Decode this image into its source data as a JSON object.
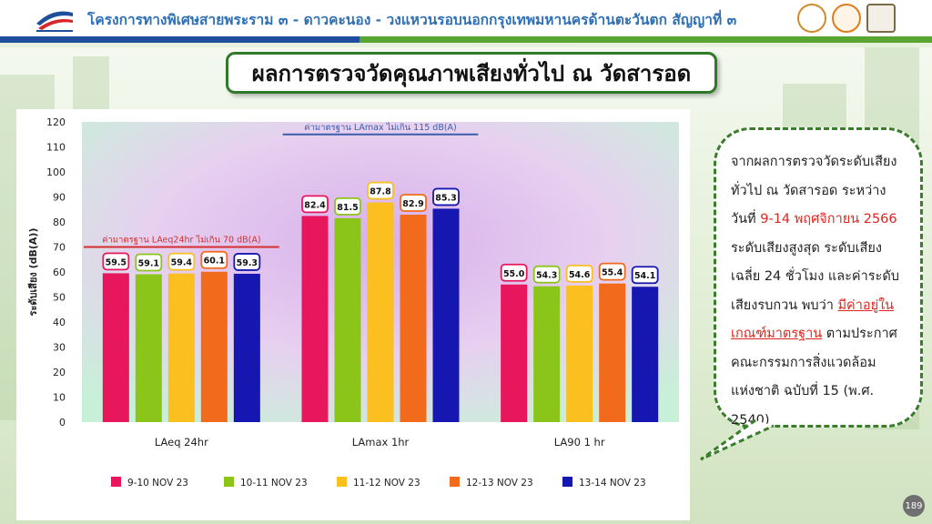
{
  "header": {
    "title": "โครงการทางพิเศษสายพระราม ๓ - ดาวคะนอง - วงแหวนรอบนอกกรุงเทพมหานครด้านตะวันตก สัญญาที่ ๓"
  },
  "subtitle": "ผลการตรวจวัดคุณภาพเสียงทั่วไป ณ วัดสารอด",
  "chart_data": {
    "type": "bar",
    "categories": [
      "LAeq 24hr",
      "LAmax 1hr",
      "LA90 1 hr"
    ],
    "series": [
      {
        "name": "9-10 NOV 23",
        "values": [
          59.5,
          82.4,
          55.0
        ],
        "labels": [
          "59.5",
          "82.4",
          "55.0"
        ],
        "color": "#e8175d"
      },
      {
        "name": "10-11 NOV 23",
        "values": [
          59.1,
          81.5,
          54.3
        ],
        "labels": [
          "59.1",
          "81.5",
          "54.3"
        ],
        "color": "#8cc51a"
      },
      {
        "name": "11-12 NOV 23",
        "values": [
          59.4,
          87.8,
          54.6
        ],
        "labels": [
          "59.4",
          "87.8",
          "54.6"
        ],
        "color": "#fbbf1f"
      },
      {
        "name": "12-13 NOV 23",
        "values": [
          60.1,
          82.9,
          55.4
        ],
        "labels": [
          "60.1",
          "82.9",
          "55.4"
        ],
        "color": "#f26a1b"
      },
      {
        "name": "13-14 NOV 23",
        "values": [
          59.3,
          85.3,
          54.1
        ],
        "labels": [
          "59.3",
          "85.3",
          "54.1"
        ],
        "color": "#1616b0"
      }
    ],
    "ylabel": "ระดับเสียง (dB(A))",
    "ylim": [
      0,
      120
    ],
    "yticks": [
      0,
      10,
      20,
      30,
      40,
      50,
      60,
      70,
      80,
      90,
      100,
      110,
      120
    ],
    "standards": [
      {
        "label": "ค่ามาตรฐาน LAeq24hr ไม่เกิน 70 dB(A)",
        "value": 70,
        "category_index": 0,
        "color": "#d32f2f"
      },
      {
        "label": "ค่ามาตรฐาน LAmax ไม่เกิน 115 dB(A)",
        "value": 115,
        "category_index": 1,
        "color": "#3a5ea8"
      }
    ],
    "legend_position": "bottom",
    "grid": false
  },
  "callout": {
    "line1": "จากผลการตรวจวัดระดับเสียง",
    "line2": "ทั่วไป ณ วัดสารอด ระหว่าง",
    "line3_prefix": "วันที่ ",
    "line3_red": "9-14 พฤศจิกายน 2566",
    "line4": "ระดับเสียงสูงสุด ระดับเสียง",
    "line5": "เฉลี่ย 24 ชั่วโมง และค่าระดับ",
    "line6_prefix": "เสียงรบกวน พบว่า ",
    "line6_red": "มีค่าอยู่ใน",
    "line7_red": "เกณฑ์มาตรฐาน",
    "line7_suffix": " ตามประกาศ",
    "line8": "คณะกรรมการสิ่งแวดล้อม",
    "line9": "แห่งชาติ ฉบับที่ 15 (พ.ศ.",
    "line10": "2540)"
  },
  "page_number": "189"
}
